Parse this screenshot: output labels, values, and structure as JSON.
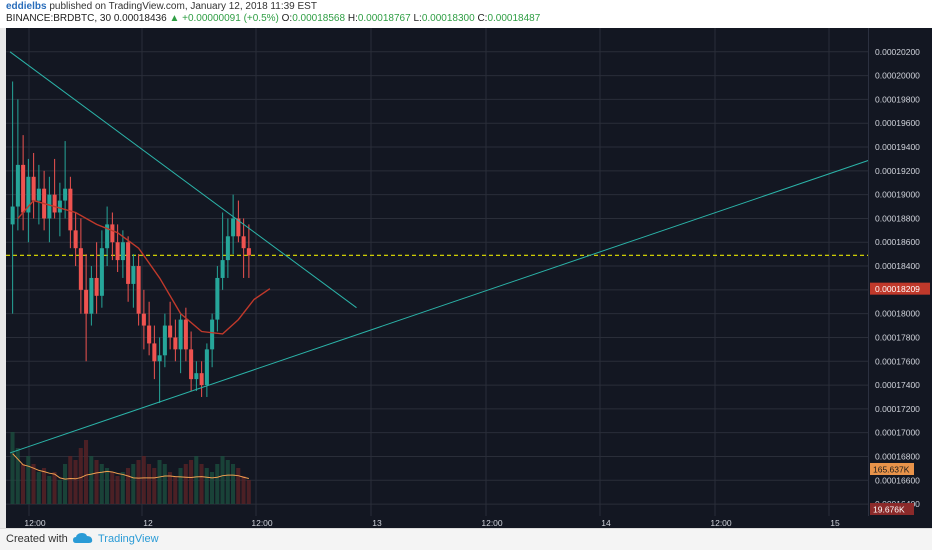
{
  "header": {
    "user": "eddielbs",
    "published_text": "published on TradingView.com, January 12, 2018 11:39 EST",
    "symbol": "BINANCE:BRDBTC, 30",
    "last": "0.00018436",
    "change": "+0.00000091 (+0.5%)",
    "o_label": "O:",
    "o_value": "0.00018568",
    "h_label": "H:",
    "h_value": "0.00018767",
    "l_label": "L:",
    "l_value": "0.00018300",
    "c_label": "C:",
    "c_value": "0.00018487"
  },
  "footer": {
    "created_with": "Created with",
    "brand": "TradingView"
  },
  "colors": {
    "background": "#131722",
    "up": "#26a69a",
    "down": "#ef5350",
    "ma": "#c0392b",
    "trendline": "#2bb3a8",
    "price_line": "#e6e600",
    "volume_ma": "#f0a050"
  },
  "chart_data": {
    "type": "candlestick",
    "symbol": "BINANCE:BRDBTC",
    "interval": "30",
    "x_tick_labels": [
      "12:00",
      "12",
      "12:00",
      "13",
      "12:00",
      "14",
      "12:00",
      "15"
    ],
    "y_ticks": [
      "0.00020200",
      "0.00020000",
      "0.00019800",
      "0.00019600",
      "0.00019400",
      "0.00019200",
      "0.00019000",
      "0.00018800",
      "0.00018600",
      "0.00018400",
      "0.00018200",
      "0.00018000",
      "0.00017800",
      "0.00017600",
      "0.00017400",
      "0.00017200",
      "0.00017000",
      "0.00016800",
      "0.00016600",
      "0.00016400"
    ],
    "ylim": [
      0.000163,
      0.000204
    ],
    "current_price_label": "0.00018209",
    "volume_label": "19.676K",
    "volume_ma_label": "165.637K",
    "horizontal_line": 0.0001849,
    "candles": [
      {
        "o": 0.0001875,
        "h": 0.0001995,
        "l": 0.00018,
        "c": 0.000189
      },
      {
        "o": 0.000189,
        "h": 0.000198,
        "l": 0.000187,
        "c": 0.0001925
      },
      {
        "o": 0.0001925,
        "h": 0.000195,
        "l": 0.000187,
        "c": 0.0001885
      },
      {
        "o": 0.0001885,
        "h": 0.000193,
        "l": 0.000186,
        "c": 0.0001915
      },
      {
        "o": 0.0001915,
        "h": 0.0001935,
        "l": 0.000188,
        "c": 0.0001895
      },
      {
        "o": 0.0001895,
        "h": 0.0001925,
        "l": 0.0001875,
        "c": 0.0001905
      },
      {
        "o": 0.0001905,
        "h": 0.000192,
        "l": 0.000187,
        "c": 0.000188
      },
      {
        "o": 0.000188,
        "h": 0.0001915,
        "l": 0.000186,
        "c": 0.00019
      },
      {
        "o": 0.00019,
        "h": 0.000193,
        "l": 0.000188,
        "c": 0.0001885
      },
      {
        "o": 0.0001885,
        "h": 0.000191,
        "l": 0.0001865,
        "c": 0.0001895
      },
      {
        "o": 0.0001895,
        "h": 0.0001945,
        "l": 0.000188,
        "c": 0.0001905
      },
      {
        "o": 0.0001905,
        "h": 0.0001915,
        "l": 0.0001855,
        "c": 0.000187
      },
      {
        "o": 0.000187,
        "h": 0.0001885,
        "l": 0.000184,
        "c": 0.0001855
      },
      {
        "o": 0.0001855,
        "h": 0.000188,
        "l": 0.00018,
        "c": 0.000182
      },
      {
        "o": 0.000182,
        "h": 0.000185,
        "l": 0.000176,
        "c": 0.00018
      },
      {
        "o": 0.00018,
        "h": 0.000184,
        "l": 0.000179,
        "c": 0.000183
      },
      {
        "o": 0.000183,
        "h": 0.000186,
        "l": 0.00018,
        "c": 0.0001815
      },
      {
        "o": 0.0001815,
        "h": 0.000187,
        "l": 0.0001805,
        "c": 0.0001855
      },
      {
        "o": 0.0001855,
        "h": 0.000189,
        "l": 0.000184,
        "c": 0.0001875
      },
      {
        "o": 0.0001875,
        "h": 0.0001885,
        "l": 0.0001845,
        "c": 0.000186
      },
      {
        "o": 0.000186,
        "h": 0.0001875,
        "l": 0.0001835,
        "c": 0.0001845
      },
      {
        "o": 0.0001845,
        "h": 0.000187,
        "l": 0.000183,
        "c": 0.000186
      },
      {
        "o": 0.000186,
        "h": 0.0001865,
        "l": 0.000181,
        "c": 0.0001825
      },
      {
        "o": 0.0001825,
        "h": 0.000185,
        "l": 0.0001805,
        "c": 0.000184
      },
      {
        "o": 0.000184,
        "h": 0.000185,
        "l": 0.000179,
        "c": 0.00018
      },
      {
        "o": 0.00018,
        "h": 0.000182,
        "l": 0.000177,
        "c": 0.000179
      },
      {
        "o": 0.000179,
        "h": 0.000181,
        "l": 0.0001765,
        "c": 0.0001775
      },
      {
        "o": 0.0001775,
        "h": 0.000179,
        "l": 0.0001745,
        "c": 0.000176
      },
      {
        "o": 0.000176,
        "h": 0.000178,
        "l": 0.0001725,
        "c": 0.0001765
      },
      {
        "o": 0.0001765,
        "h": 0.00018,
        "l": 0.0001755,
        "c": 0.000179
      },
      {
        "o": 0.000179,
        "h": 0.000181,
        "l": 0.000177,
        "c": 0.000178
      },
      {
        "o": 0.000178,
        "h": 0.0001795,
        "l": 0.000176,
        "c": 0.000177
      },
      {
        "o": 0.000177,
        "h": 0.00018,
        "l": 0.000175,
        "c": 0.0001795
      },
      {
        "o": 0.0001795,
        "h": 0.0001805,
        "l": 0.000176,
        "c": 0.000177
      },
      {
        "o": 0.000177,
        "h": 0.0001785,
        "l": 0.0001735,
        "c": 0.0001745
      },
      {
        "o": 0.0001745,
        "h": 0.000176,
        "l": 0.0001735,
        "c": 0.000175
      },
      {
        "o": 0.000175,
        "h": 0.000176,
        "l": 0.000173,
        "c": 0.000174
      },
      {
        "o": 0.000174,
        "h": 0.0001775,
        "l": 0.000173,
        "c": 0.000177
      },
      {
        "o": 0.000177,
        "h": 0.00018,
        "l": 0.0001755,
        "c": 0.0001795
      },
      {
        "o": 0.0001795,
        "h": 0.000184,
        "l": 0.0001785,
        "c": 0.000183
      },
      {
        "o": 0.000183,
        "h": 0.0001885,
        "l": 0.000182,
        "c": 0.0001845
      },
      {
        "o": 0.0001845,
        "h": 0.000188,
        "l": 0.000183,
        "c": 0.0001865
      },
      {
        "o": 0.0001865,
        "h": 0.00019,
        "l": 0.000185,
        "c": 0.000188
      },
      {
        "o": 0.000188,
        "h": 0.0001895,
        "l": 0.000186,
        "c": 0.0001865
      },
      {
        "o": 0.0001865,
        "h": 0.000188,
        "l": 0.000183,
        "c": 0.0001855
      },
      {
        "o": 0.0001855,
        "h": 0.0001875,
        "l": 0.000183,
        "c": 0.0001849
      }
    ],
    "volume": [
      0.9,
      0.7,
      0.5,
      0.6,
      0.5,
      0.4,
      0.45,
      0.35,
      0.4,
      0.3,
      0.5,
      0.6,
      0.55,
      0.7,
      0.8,
      0.6,
      0.55,
      0.5,
      0.45,
      0.4,
      0.35,
      0.4,
      0.45,
      0.5,
      0.55,
      0.6,
      0.5,
      0.45,
      0.55,
      0.5,
      0.4,
      0.35,
      0.45,
      0.5,
      0.55,
      0.6,
      0.5,
      0.45,
      0.4,
      0.5,
      0.6,
      0.55,
      0.5,
      0.45,
      0.35,
      0.3
    ],
    "moving_average": [
      {
        "i": 1,
        "v": 0.000188
      },
      {
        "i": 4,
        "v": 0.0001895
      },
      {
        "i": 8,
        "v": 0.000189
      },
      {
        "i": 12,
        "v": 0.0001885
      },
      {
        "i": 16,
        "v": 0.0001875
      },
      {
        "i": 20,
        "v": 0.0001868
      },
      {
        "i": 24,
        "v": 0.0001855
      },
      {
        "i": 28,
        "v": 0.000183
      },
      {
        "i": 32,
        "v": 0.00018
      },
      {
        "i": 36,
        "v": 0.0001785
      },
      {
        "i": 40,
        "v": 0.0001783
      },
      {
        "i": 43,
        "v": 0.0001795
      },
      {
        "i": 46,
        "v": 0.0001812
      },
      {
        "i": 49,
        "v": 0.0001821
      }
    ],
    "trendlines": [
      {
        "from": {
          "i": 0,
          "v": 0.000202
        },
        "to": {
          "i": 40,
          "v": 0.00019
        },
        "extend_to": {
          "i": 66,
          "v": 0.0001805
        }
      },
      {
        "from": {
          "i": 0,
          "v": 0.0001683
        },
        "to": {
          "i": 175,
          "v": 0.0001946
        }
      }
    ]
  }
}
